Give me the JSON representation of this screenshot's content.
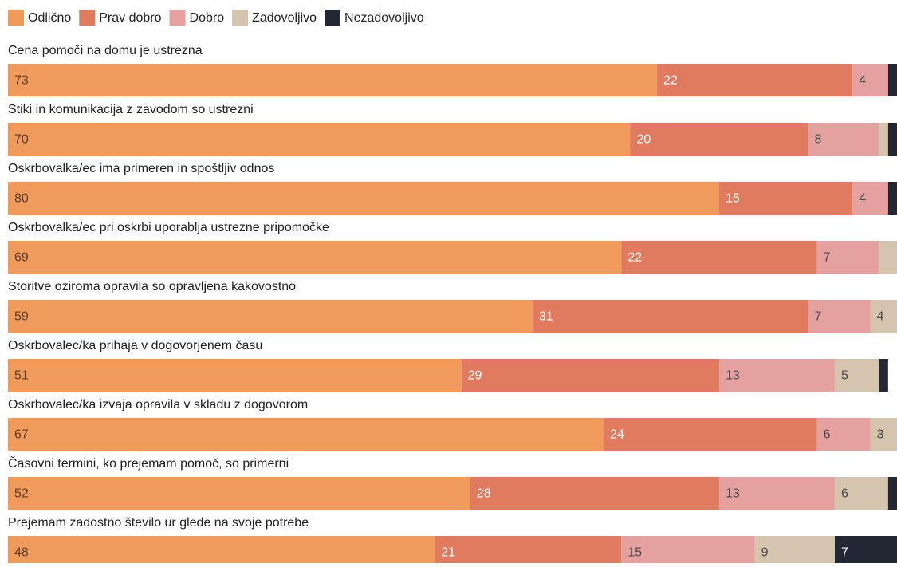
{
  "chart_data": {
    "type": "stacked-bar-horizontal",
    "categories": [
      "Cena pomoči na domu je ustrezna",
      "Stiki in komunikacija z zavodom so ustrezni",
      "Oskrbovalka/ec ima primeren in spoštljiv odnos",
      "Oskrbovalka/ec pri oskrbi uporablja ustrezne pripomočke",
      "Storitve oziroma opravila so opravljena kakovostno",
      "Oskrbovalec/ka prihaja v dogovorjenem času",
      "Oskrbovalec/ka izvaja opravila v skladu z dogovorom",
      "Časovni termini, ko prejemam pomoč, so primerni",
      "Prejemam zadostno število ur glede na svoje potrebe"
    ],
    "series": [
      {
        "name": "Odlično",
        "color": "#f09a5b",
        "values": [
          73,
          70,
          80,
          69,
          59,
          51,
          67,
          52,
          48
        ]
      },
      {
        "name": "Prav dobro",
        "color": "#e07b5f",
        "values": [
          22,
          20,
          15,
          22,
          31,
          29,
          24,
          28,
          21
        ]
      },
      {
        "name": "Dobro",
        "color": "#e5a0a0",
        "values": [
          4,
          8,
          4,
          7,
          7,
          13,
          6,
          13,
          15
        ]
      },
      {
        "name": "Zadovoljivo",
        "color": "#d5c5af",
        "values": [
          0,
          1,
          0,
          2,
          4,
          5,
          3,
          6,
          9
        ]
      },
      {
        "name": "Nezadovoljivo",
        "color": "#232733",
        "values": [
          1,
          1,
          1,
          0,
          0,
          1,
          0,
          1,
          7
        ]
      }
    ],
    "xlim": [
      0,
      100
    ],
    "legend": "top-left"
  }
}
